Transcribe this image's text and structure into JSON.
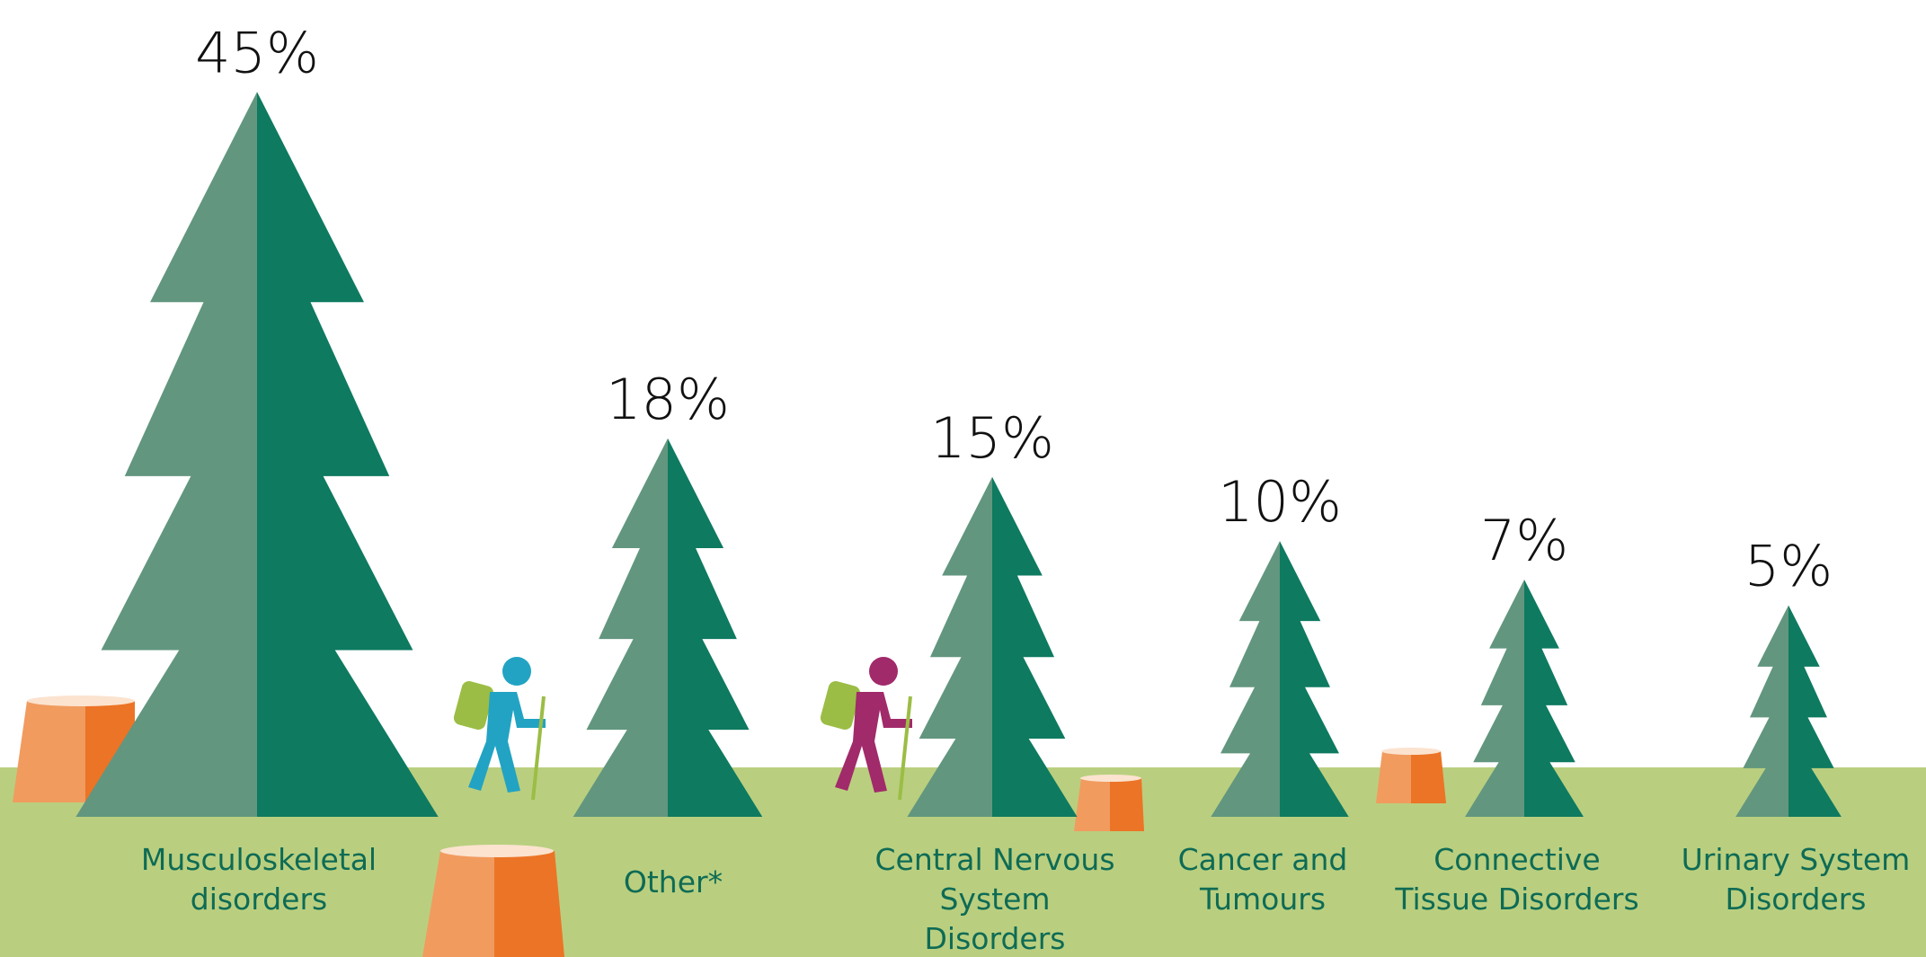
{
  "chart_data": {
    "type": "pictorial-bar",
    "categories": [
      "Musculoskeletal disorders",
      "Other*",
      "Central Nervous System Disorders",
      "Cancer and Tumours",
      "Connective Tissue Disorders",
      "Urinary System Disorders"
    ],
    "values": [
      45,
      18,
      15,
      10,
      7,
      5
    ],
    "value_labels": [
      "45%",
      "18%",
      "15%",
      "10%",
      "7%",
      "5%"
    ],
    "colors": [
      "#62967f",
      "#0e7a60"
    ]
  }
}
